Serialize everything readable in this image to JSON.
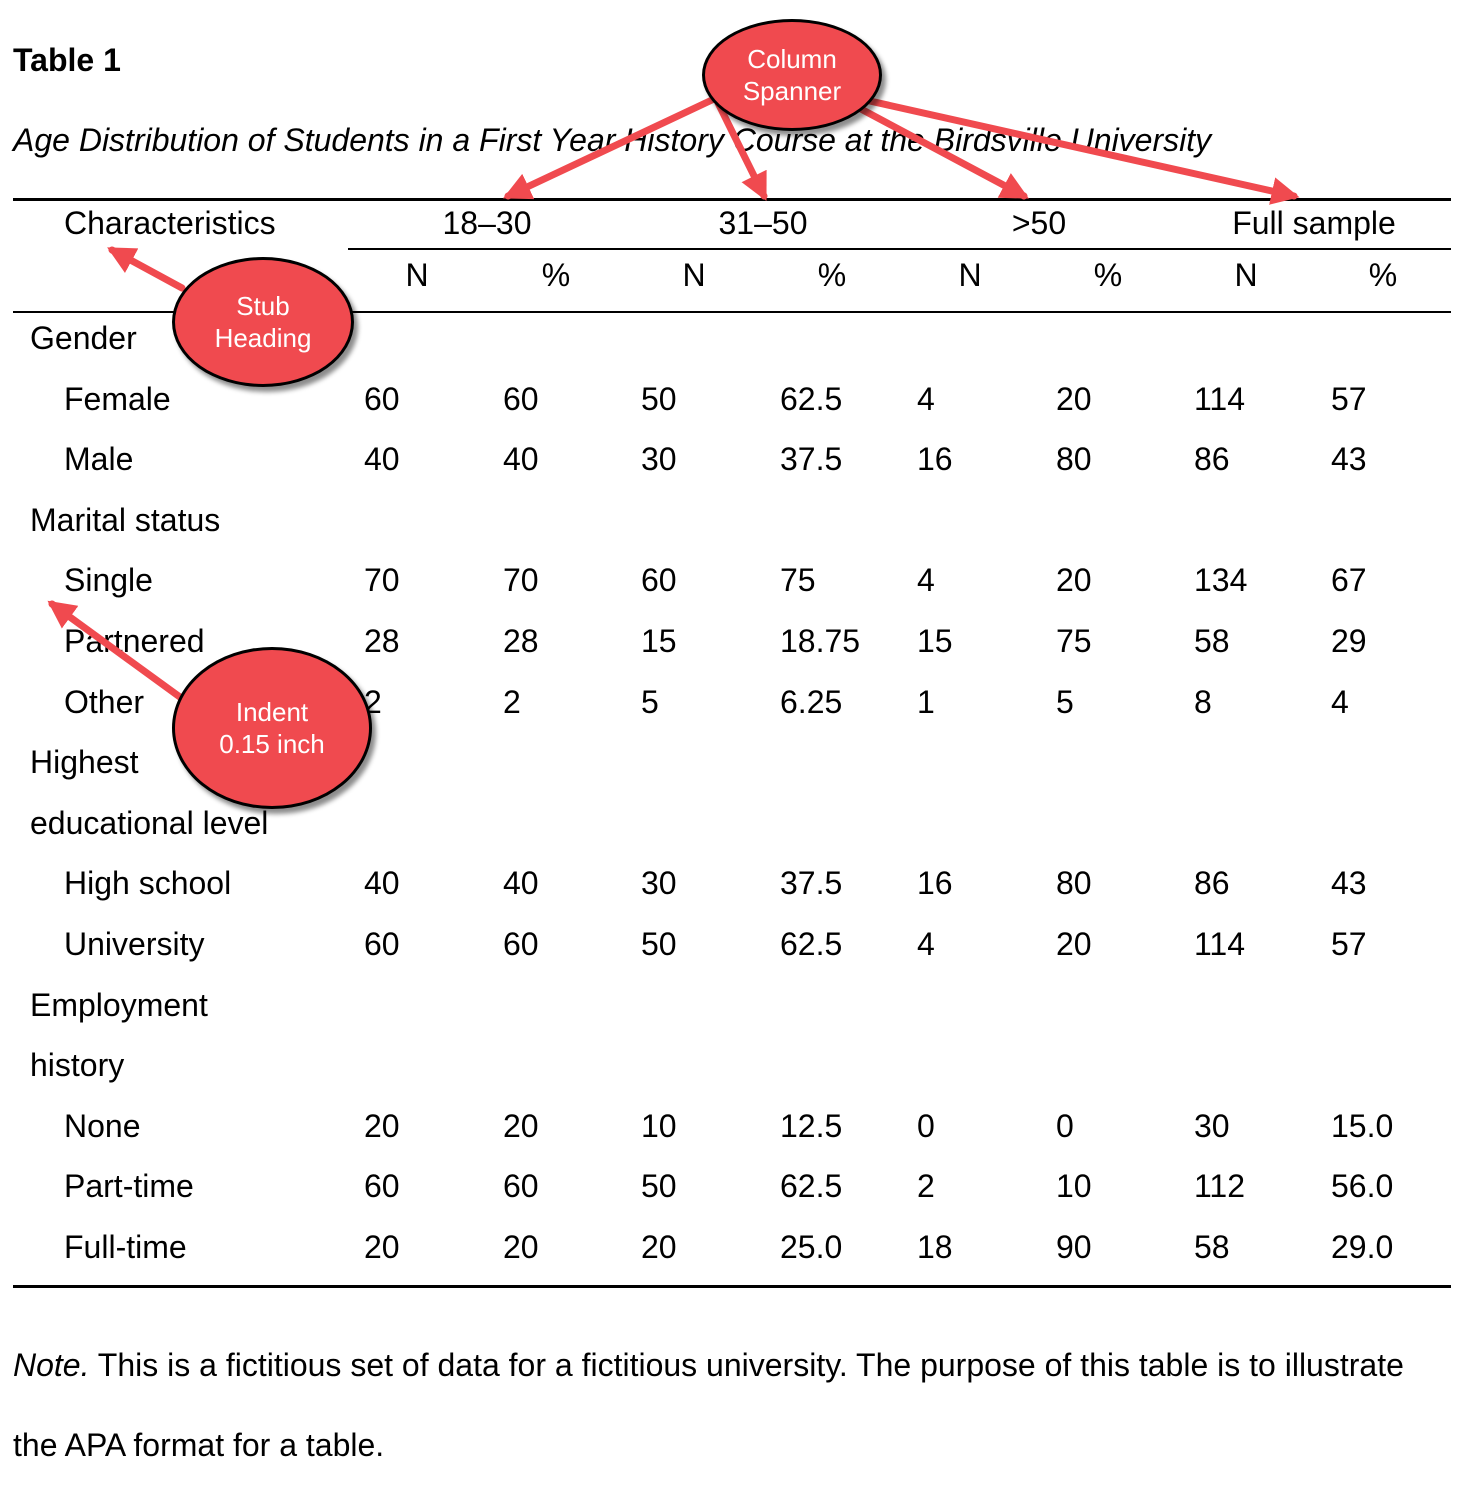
{
  "table": {
    "label": "Table 1",
    "title": "Age Distribution of Students in a First Year History Course at the Birdsville University",
    "stub_heading": "Characteristics",
    "spanners": [
      "18–30",
      "31–50",
      ">50",
      "Full sample"
    ],
    "subheads": [
      "N",
      "%",
      "N",
      "%",
      "N",
      "%",
      "N",
      "%"
    ],
    "rows": [
      {
        "kind": "category",
        "label": "Gender",
        "values": []
      },
      {
        "kind": "item",
        "label": "Female",
        "values": [
          "60",
          "60",
          "50",
          "62.5",
          "4",
          "20",
          "114",
          "57"
        ]
      },
      {
        "kind": "item",
        "label": "Male",
        "values": [
          "40",
          "40",
          "30",
          "37.5",
          "16",
          "80",
          "86",
          "43"
        ]
      },
      {
        "kind": "category",
        "label": "Marital status",
        "values": []
      },
      {
        "kind": "item",
        "label": "Single",
        "values": [
          "70",
          "70",
          "60",
          "75",
          "4",
          "20",
          "134",
          "67"
        ]
      },
      {
        "kind": "item",
        "label": "Partnered",
        "values": [
          "28",
          "28",
          "15",
          "18.75",
          "15",
          "75",
          "58",
          "29"
        ]
      },
      {
        "kind": "item",
        "label": "Other",
        "values": [
          "2",
          "2",
          "5",
          "6.25",
          "1",
          "5",
          "8",
          "4"
        ]
      },
      {
        "kind": "category",
        "label": "Highest",
        "values": []
      },
      {
        "kind": "category",
        "label": "educational level",
        "values": []
      },
      {
        "kind": "item",
        "label": "High school",
        "values": [
          "40",
          "40",
          "30",
          "37.5",
          "16",
          "80",
          "86",
          "43"
        ]
      },
      {
        "kind": "item",
        "label": "University",
        "values": [
          "60",
          "60",
          "50",
          "62.5",
          "4",
          "20",
          "114",
          "57"
        ]
      },
      {
        "kind": "category",
        "label": "Employment",
        "values": []
      },
      {
        "kind": "category",
        "label": "history",
        "values": []
      },
      {
        "kind": "item",
        "label": "None",
        "values": [
          "20",
          "20",
          "10",
          "12.5",
          "0",
          "0",
          "30",
          "15.0"
        ]
      },
      {
        "kind": "item",
        "label": "Part-time",
        "values": [
          "60",
          "60",
          "50",
          "62.5",
          "2",
          "10",
          "112",
          "56.0"
        ]
      },
      {
        "kind": "item",
        "label": "Full-time",
        "values": [
          "20",
          "20",
          "20",
          "25.0",
          "18",
          "90",
          "58",
          "29.0"
        ]
      }
    ]
  },
  "note": {
    "label": "Note.",
    "text": " This is a fictitious set of data for a fictitious university. The purpose of this table is to illustrate the APA format for a table."
  },
  "callouts": {
    "column_spanner": {
      "line1": "Column",
      "line2": "Spanner"
    },
    "stub_heading": {
      "line1": "Stub",
      "line2": "Heading"
    },
    "indent": {
      "line1": "Indent",
      "line2": "0.15 inch"
    }
  },
  "colors": {
    "callout_fill": "#f04a4f",
    "arrow": "#f04a4f"
  }
}
